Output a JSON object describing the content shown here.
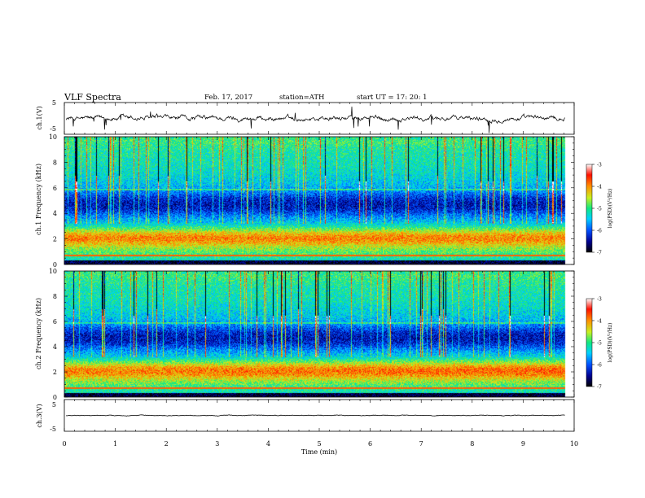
{
  "header": {
    "title": "VLF  Spectra",
    "date": "Feb. 17, 2017",
    "station": "station=ATH",
    "start": "start  UT  =    17: 20: 1"
  },
  "chart_data": [
    {
      "type": "line",
      "panel": "ch1-waveform",
      "ylabel": "ch.1(V)",
      "ylim": [
        -5,
        5
      ],
      "yticks": [
        "5",
        "-5"
      ],
      "xlim": [
        0,
        10
      ],
      "color": "#000000"
    },
    {
      "type": "heatmap",
      "panel": "ch1-spectrogram",
      "ylabel": "ch.1  Frequency (kHz)",
      "ylim": [
        0,
        10
      ],
      "yticks": [
        "0",
        "2",
        "4",
        "6",
        "8",
        "10"
      ],
      "xlim": [
        0,
        10
      ],
      "colorbar": {
        "label": "log(PSD)(V²/Hz)",
        "range": [
          -7,
          -3
        ],
        "ticks": [
          "-3",
          "-4",
          "-5",
          "-6",
          "-7"
        ]
      }
    },
    {
      "type": "heatmap",
      "panel": "ch2-spectrogram",
      "ylabel": "ch.2  Frequency (kHz)",
      "ylim": [
        0,
        10
      ],
      "yticks": [
        "0",
        "2",
        "4",
        "6",
        "8",
        "10"
      ],
      "xlim": [
        0,
        10
      ],
      "colorbar": {
        "label": "log(PSD)(V²/Hz)",
        "range": [
          -7,
          -3
        ],
        "ticks": [
          "-3",
          "-4",
          "-5",
          "-6",
          "-7"
        ]
      }
    },
    {
      "type": "line",
      "panel": "ch3-waveform",
      "ylabel": "ch.3(V)",
      "ylim": [
        -5,
        5
      ],
      "yticks": [
        "5",
        "-5"
      ],
      "xlim": [
        0,
        10
      ],
      "xlabel": "Time  (min)",
      "xticks": [
        "0",
        "1",
        "2",
        "3",
        "4",
        "5",
        "6",
        "7",
        "8",
        "9",
        "10"
      ],
      "color": "#000000"
    }
  ]
}
